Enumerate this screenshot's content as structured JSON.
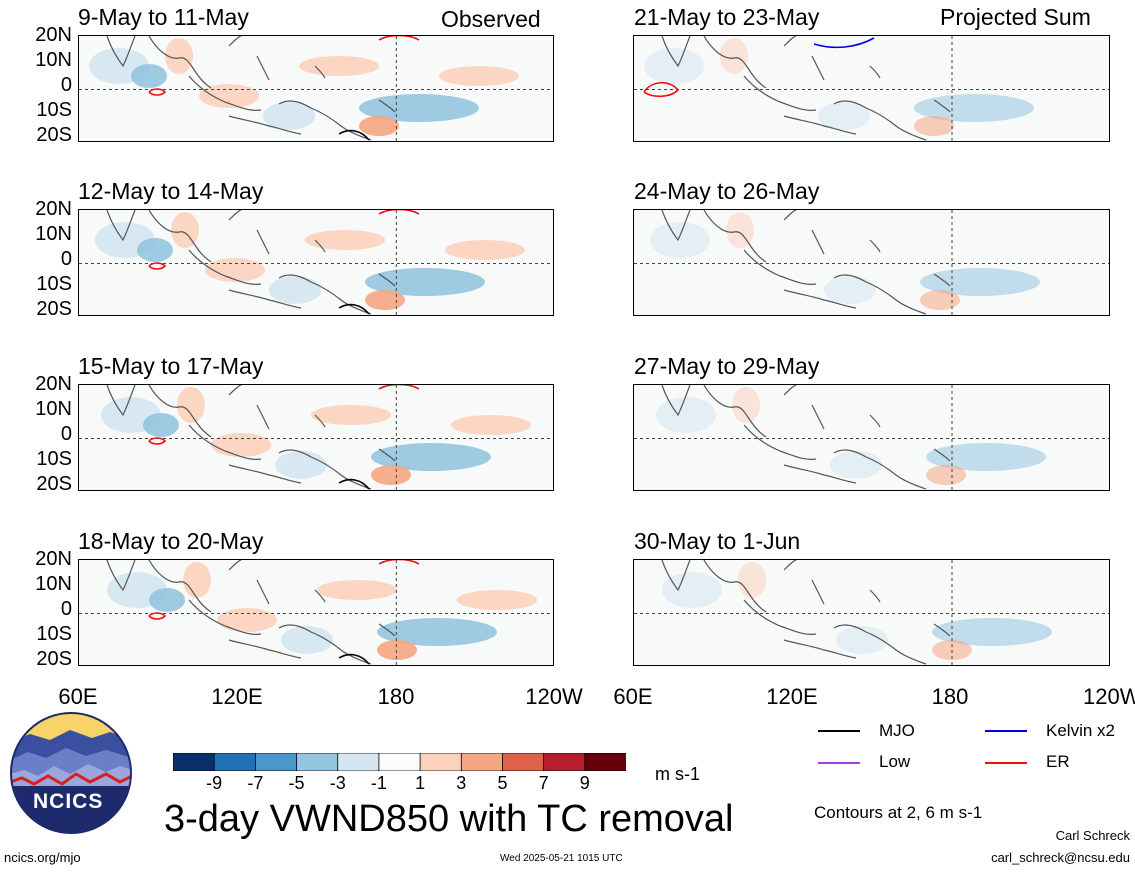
{
  "header": {
    "left_tag": "Observed",
    "right_tag": "Projected Sum"
  },
  "panels_left": [
    {
      "title": "9-May to 11-May"
    },
    {
      "title": "12-May to 14-May"
    },
    {
      "title": "15-May to 17-May"
    },
    {
      "title": "18-May to 20-May"
    }
  ],
  "panels_right": [
    {
      "title": "21-May to 23-May"
    },
    {
      "title": "24-May to 26-May"
    },
    {
      "title": "27-May to 29-May"
    },
    {
      "title": "30-May to 1-Jun"
    }
  ],
  "y_axis": [
    "20N",
    "10N",
    "0",
    "10S",
    "20S"
  ],
  "x_axis": [
    "60E",
    "120E",
    "180",
    "120W"
  ],
  "colorbar": {
    "ticks": [
      "-9",
      "-7",
      "-5",
      "-3",
      "-1",
      "1",
      "3",
      "5",
      "7",
      "9"
    ],
    "units": "m s-1",
    "colors": [
      "#08306b",
      "#2171b5",
      "#4a98c9",
      "#94c4df",
      "#d4e6f2",
      "#fbfbfb",
      "#fcd2bd",
      "#f4a582",
      "#e0614a",
      "#b51f2e",
      "#67000d"
    ]
  },
  "main_title": "3-day VWND850 with TC removal",
  "legend": {
    "items": [
      {
        "label": "MJO",
        "color": "#000000"
      },
      {
        "label": "Kelvin x2",
        "color": "#0000dd"
      },
      {
        "label": "Low",
        "color": "#a040e0"
      },
      {
        "label": "ER",
        "color": "#ee1111"
      }
    ],
    "contours_note": "Contours at 2, 6 m s-1"
  },
  "logo": {
    "text": "NCICS"
  },
  "footer": {
    "left": "ncics.org/mjo",
    "center": "Wed 2025-05-21 1015 UTC",
    "author": "Carl Schreck",
    "email": "carl_schreck@ncsu.edu"
  }
}
